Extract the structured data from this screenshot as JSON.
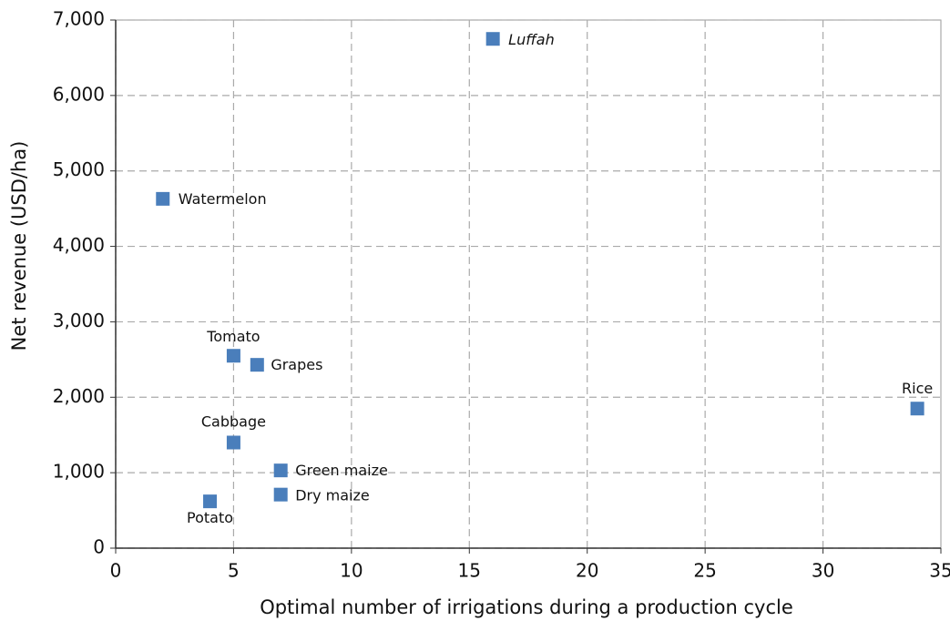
{
  "chart_data": {
    "type": "scatter",
    "x_label": "Optimal number of irrigations during a production cycle",
    "y_label": "Net revenue (USD/ha)",
    "labels": [
      "Luffah",
      "Watermelon",
      "Tomato",
      "Grapes",
      "Rice",
      "Cabbage",
      "Green maize",
      "Dry maize",
      "Potato"
    ],
    "x": [
      16,
      2,
      5,
      6,
      34,
      5,
      7,
      7,
      4
    ],
    "values": [
      6750,
      4630,
      2550,
      2430,
      1850,
      1400,
      1030,
      710,
      620
    ],
    "color": "#4a7ebb",
    "xlim": [
      0,
      35
    ],
    "xticks": [
      0,
      5,
      10,
      15,
      20,
      25,
      30,
      35
    ],
    "ylim": [
      0,
      7000
    ],
    "yticks": [
      0,
      {
        "value": 1000,
        "label": "1,000"
      },
      {
        "value": 2000,
        "label": "2,000"
      },
      {
        "value": 3000,
        "label": "3,000"
      },
      {
        "value": 4000,
        "label": "4,000"
      },
      {
        "value": 5000,
        "label": "5,000"
      },
      {
        "value": 6000,
        "label": "6,000"
      },
      {
        "value": 7000,
        "label": "7,000"
      }
    ],
    "grid": true
  }
}
